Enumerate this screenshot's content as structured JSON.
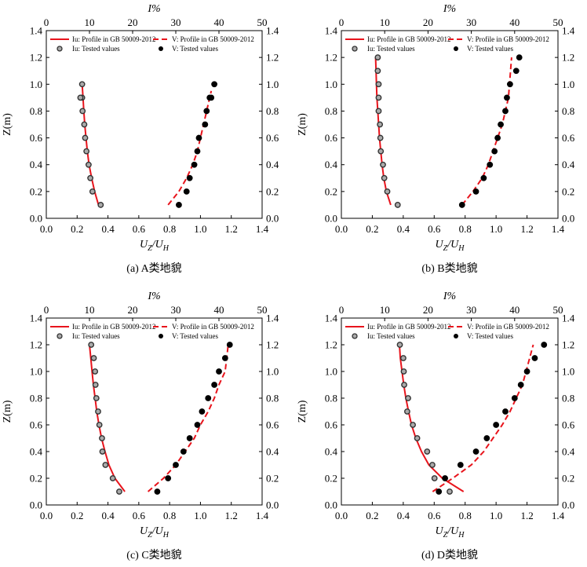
{
  "figure": {
    "top_axis_label": "I%",
    "bottom_axis_label_main": "U",
    "bottom_axis_sub1": "Z",
    "bottom_axis_sub2": "H",
    "y_axis_label": "Z(m)"
  },
  "colors": {
    "profile": "#e8141c",
    "iu_marker_fill": "#aaaaaa",
    "v_marker_fill": "#000000",
    "axis": "#000000"
  },
  "chart_data": [
    {
      "type": "scatter",
      "panel": "a",
      "caption": "(a) A类地貌",
      "xlabel": "UZ/UH",
      "x2label": "I%",
      "ylabel": "Z(m)",
      "xlim": [
        0,
        1.4
      ],
      "x2lim": [
        0,
        50
      ],
      "ylim": [
        0,
        1.4
      ],
      "xticks": [
        "0.0",
        "0.2",
        "0.4",
        "0.6",
        "0.8",
        "1.0",
        "1.2",
        "1.4"
      ],
      "x2ticks": [
        "0",
        "10",
        "20",
        "30",
        "40",
        "50"
      ],
      "yticks": [
        "0.0",
        "0.2",
        "0.4",
        "0.6",
        "0.8",
        "1.0",
        "1.2",
        "1.4"
      ],
      "legend": [
        "Iu: Profile in GB 50009-2012",
        "V: Profile in GB 50009-2012",
        "Iu: Tested values",
        "V: Tested values"
      ],
      "series": [
        {
          "name": "Iu: Profile in GB 50009-2012",
          "axis": "top",
          "style": "solid",
          "x": [
            12.1,
            11.2,
            10.5,
            9.9,
            9.5,
            9.2,
            8.9,
            8.7,
            8.5,
            8.3
          ],
          "y": [
            0.1,
            0.2,
            0.3,
            0.4,
            0.5,
            0.6,
            0.7,
            0.8,
            0.9,
            1.0
          ]
        },
        {
          "name": "V: Profile in GB 50009-2012",
          "axis": "bottom",
          "style": "dashed",
          "x": [
            0.79,
            0.86,
            0.91,
            0.95,
            0.98,
            1.0,
            1.02,
            1.04,
            1.06,
            1.07
          ],
          "y": [
            0.1,
            0.2,
            0.3,
            0.4,
            0.5,
            0.6,
            0.7,
            0.8,
            0.9,
            0.95
          ]
        },
        {
          "name": "Iu: Tested values",
          "axis": "top",
          "marker": "hollow-circle",
          "x": [
            12.6,
            10.7,
            10.2,
            9.8,
            9.3,
            9.0,
            8.8,
            8.4,
            8.3,
            7.9,
            8.3
          ],
          "y": [
            0.1,
            0.2,
            0.3,
            0.4,
            0.5,
            0.6,
            0.7,
            0.8,
            0.9,
            0.9,
            1.0
          ]
        },
        {
          "name": "V: Tested values",
          "axis": "bottom",
          "marker": "filled-circle",
          "x": [
            0.86,
            0.91,
            0.93,
            0.96,
            0.98,
            0.99,
            1.03,
            1.04,
            1.06,
            1.07,
            1.09
          ],
          "y": [
            0.1,
            0.2,
            0.3,
            0.4,
            0.5,
            0.6,
            0.7,
            0.8,
            0.9,
            0.9,
            1.0
          ]
        }
      ]
    },
    {
      "type": "scatter",
      "panel": "b",
      "caption": "(b) B类地貌",
      "xlabel": "UZ/UH",
      "x2label": "I%",
      "ylabel": "Z(m)",
      "xlim": [
        0,
        1.4
      ],
      "x2lim": [
        0,
        50
      ],
      "ylim": [
        0,
        1.4
      ],
      "xticks": [
        "0.0",
        "0.2",
        "0.4",
        "0.6",
        "0.8",
        "1.0",
        "1.2",
        "1.4"
      ],
      "x2ticks": [
        "0",
        "10",
        "20",
        "30",
        "40",
        "50"
      ],
      "yticks": [
        "0.0",
        "0.2",
        "0.4",
        "0.6",
        "0.8",
        "1.0",
        "1.2",
        "1.4"
      ],
      "legend": [
        "Iu: Profile in GB 50009-2012",
        "V: Profile in GB 50009-2012",
        "Iu: Tested values",
        "V: Tested values"
      ],
      "series": [
        {
          "name": "Iu: Profile in GB 50009-2012",
          "axis": "top",
          "style": "solid",
          "x": [
            11.4,
            10.4,
            9.8,
            9.4,
            9.1,
            8.8,
            8.6,
            8.4,
            8.2,
            8.1,
            8.0,
            7.9
          ],
          "y": [
            0.1,
            0.2,
            0.3,
            0.4,
            0.5,
            0.6,
            0.7,
            0.8,
            0.9,
            1.0,
            1.1,
            1.2
          ]
        },
        {
          "name": "V: Profile in GB 50009-2012",
          "axis": "bottom",
          "style": "dashed",
          "x": [
            0.78,
            0.85,
            0.91,
            0.95,
            0.98,
            1.01,
            1.04,
            1.06,
            1.08,
            1.1
          ],
          "y": [
            0.1,
            0.2,
            0.3,
            0.4,
            0.5,
            0.6,
            0.7,
            0.8,
            0.9,
            1.2
          ]
        },
        {
          "name": "Iu: Tested values",
          "axis": "top",
          "marker": "hollow-circle",
          "x": [
            13.0,
            10.6,
            9.9,
            9.6,
            9.1,
            9.0,
            8.9,
            8.6,
            8.6,
            8.6,
            8.4,
            8.4
          ],
          "y": [
            0.1,
            0.2,
            0.3,
            0.4,
            0.5,
            0.6,
            0.7,
            0.8,
            0.9,
            1.0,
            1.1,
            1.2
          ]
        },
        {
          "name": "V: Tested values",
          "axis": "bottom",
          "marker": "filled-circle",
          "x": [
            0.78,
            0.87,
            0.92,
            0.96,
            0.99,
            1.01,
            1.03,
            1.06,
            1.07,
            1.09,
            1.13,
            1.15
          ],
          "y": [
            0.1,
            0.2,
            0.3,
            0.4,
            0.5,
            0.6,
            0.7,
            0.8,
            0.9,
            1.0,
            1.1,
            1.2
          ]
        }
      ]
    },
    {
      "type": "scatter",
      "panel": "c",
      "caption": "(c) C类地貌",
      "xlabel": "UZ/UH",
      "x2label": "I%",
      "ylabel": "Z(m)",
      "xlim": [
        0,
        1.4
      ],
      "x2lim": [
        0,
        50
      ],
      "ylim": [
        0,
        1.4
      ],
      "xticks": [
        "0.0",
        "0.2",
        "0.4",
        "0.6",
        "0.8",
        "1.0",
        "1.2",
        "1.4"
      ],
      "x2ticks": [
        "0",
        "10",
        "20",
        "30",
        "40",
        "50"
      ],
      "yticks": [
        "0.0",
        "0.2",
        "0.4",
        "0.6",
        "0.8",
        "1.0",
        "1.2",
        "1.4"
      ],
      "legend": [
        "Iu: Profile in GB 50009-2012",
        "V: Profile in GB 50009-2012",
        "Iu: Tested values",
        "V: Tested values"
      ],
      "series": [
        {
          "name": "Iu: Profile in GB 50009-2012",
          "axis": "top",
          "style": "solid",
          "x": [
            18.2,
            15.9,
            14.5,
            13.6,
            12.8,
            12.2,
            11.7,
            11.3,
            10.9,
            10.6,
            10.3,
            10.0
          ],
          "y": [
            0.1,
            0.2,
            0.3,
            0.4,
            0.5,
            0.6,
            0.7,
            0.8,
            0.9,
            1.0,
            1.1,
            1.2
          ]
        },
        {
          "name": "V: Profile in GB 50009-2012",
          "axis": "bottom",
          "style": "dashed",
          "x": [
            0.66,
            0.76,
            0.84,
            0.9,
            0.96,
            1.0,
            1.05,
            1.09,
            1.12,
            1.16,
            1.18
          ],
          "y": [
            0.1,
            0.2,
            0.3,
            0.4,
            0.5,
            0.6,
            0.7,
            0.8,
            0.9,
            1.0,
            1.2
          ]
        },
        {
          "name": "Iu: Tested values",
          "axis": "top",
          "marker": "hollow-circle",
          "x": [
            16.9,
            15.4,
            13.7,
            13.0,
            12.9,
            12.3,
            12.0,
            11.6,
            11.4,
            11.3,
            11.0,
            10.4
          ],
          "y": [
            0.1,
            0.2,
            0.3,
            0.4,
            0.5,
            0.6,
            0.7,
            0.8,
            0.9,
            1.0,
            1.1,
            1.2
          ]
        },
        {
          "name": "V: Tested values",
          "axis": "bottom",
          "marker": "filled-circle",
          "x": [
            0.72,
            0.79,
            0.84,
            0.89,
            0.93,
            0.98,
            1.01,
            1.05,
            1.09,
            1.12,
            1.16,
            1.19
          ],
          "y": [
            0.1,
            0.2,
            0.3,
            0.4,
            0.5,
            0.6,
            0.7,
            0.8,
            0.9,
            1.0,
            1.1,
            1.2
          ]
        }
      ]
    },
    {
      "type": "scatter",
      "panel": "d",
      "caption": "(d) D类地貌",
      "xlabel": "UZ/UH",
      "x2label": "I%",
      "ylabel": "Z(m)",
      "xlim": [
        0,
        1.4
      ],
      "x2lim": [
        0,
        50
      ],
      "ylim": [
        0,
        1.4
      ],
      "xticks": [
        "0.0",
        "0.2",
        "0.4",
        "0.6",
        "0.8",
        "1.0",
        "1.2",
        "1.4"
      ],
      "x2ticks": [
        "0",
        "10",
        "20",
        "30",
        "40",
        "50"
      ],
      "yticks": [
        "0.0",
        "0.2",
        "0.4",
        "0.6",
        "0.8",
        "1.0",
        "1.2",
        "1.4"
      ],
      "legend": [
        "Iu: Profile in GB 50009-2012",
        "V: Profile in GB 50009-2012",
        "Iu: Tested values",
        "V: Tested values"
      ],
      "series": [
        {
          "name": "Iu: Profile in GB 50009-2012",
          "axis": "top",
          "style": "solid",
          "x": [
            28.2,
            23.3,
            20.2,
            18.5,
            17.2,
            16.2,
            15.5,
            14.9,
            14.4,
            14.0,
            13.6,
            13.4
          ],
          "y": [
            0.1,
            0.2,
            0.3,
            0.4,
            0.5,
            0.6,
            0.7,
            0.8,
            0.9,
            1.0,
            1.1,
            1.2
          ]
        },
        {
          "name": "V: Profile in GB 50009-2012",
          "axis": "bottom",
          "style": "dashed",
          "x": [
            0.59,
            0.72,
            0.84,
            0.92,
            0.98,
            1.04,
            1.09,
            1.13,
            1.17,
            1.24
          ],
          "y": [
            0.1,
            0.2,
            0.3,
            0.4,
            0.5,
            0.6,
            0.7,
            0.8,
            0.9,
            1.2
          ]
        },
        {
          "name": "Iu: Tested values",
          "axis": "top",
          "marker": "hollow-circle",
          "x": [
            25.0,
            21.5,
            21.0,
            19.8,
            17.5,
            16.5,
            15.2,
            15.4,
            14.5,
            14.4,
            14.3,
            13.5
          ],
          "y": [
            0.1,
            0.2,
            0.3,
            0.4,
            0.5,
            0.6,
            0.7,
            0.8,
            0.9,
            1.0,
            1.1,
            1.2
          ]
        },
        {
          "name": "V: Tested values",
          "axis": "bottom",
          "marker": "filled-circle",
          "x": [
            0.63,
            0.67,
            0.77,
            0.87,
            0.94,
            1.0,
            1.06,
            1.12,
            1.16,
            1.2,
            1.25,
            1.31
          ],
          "y": [
            0.1,
            0.2,
            0.3,
            0.4,
            0.5,
            0.6,
            0.7,
            0.8,
            0.9,
            1.0,
            1.1,
            1.2
          ]
        }
      ]
    }
  ]
}
